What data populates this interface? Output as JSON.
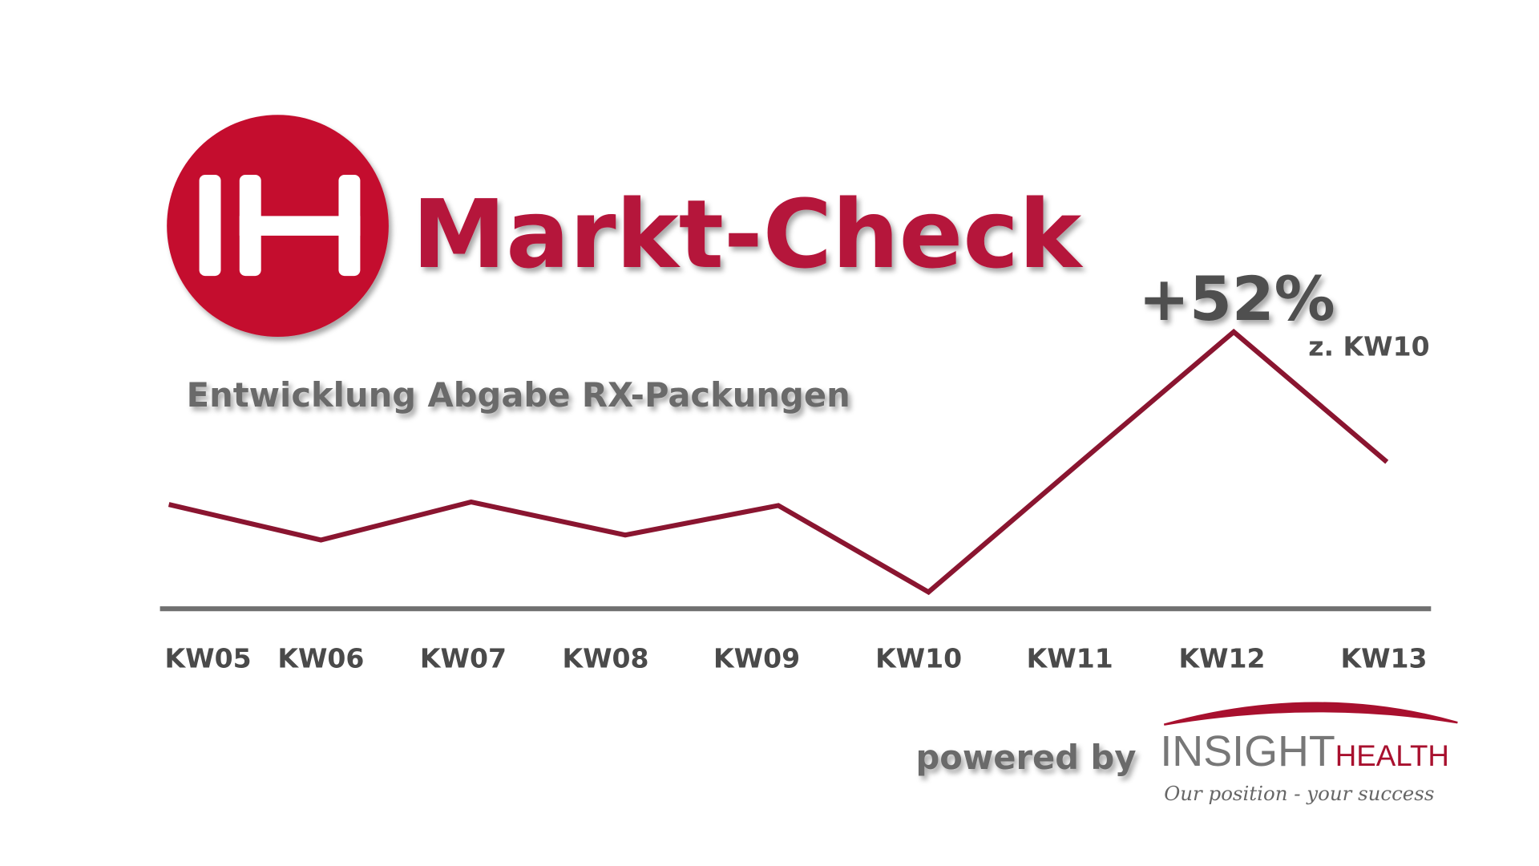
{
  "title": "Markt-Check",
  "logo_letters": "IH",
  "subtitle": "Entwicklung Abgabe RX-Packungen",
  "colors": {
    "brand_red": "#b5123a",
    "line": "#8a1530",
    "axis": "#707070",
    "text_gray": "#4f4f4f"
  },
  "annotation": {
    "value": "+52%",
    "reference": "z. KW10",
    "point": "KW12"
  },
  "footer": {
    "powered_by": "powered by",
    "brand_main": "INSIGHT",
    "brand_accent": "HEALTH",
    "tagline": "Our position - your success"
  },
  "chart_data": {
    "type": "line",
    "title": "Markt-Check",
    "subtitle": "Entwicklung Abgabe RX-Packungen",
    "categories": [
      "KW05",
      "KW06",
      "KW07",
      "KW08",
      "KW09",
      "KW10",
      "KW11",
      "KW12",
      "KW13"
    ],
    "values": [
      117.5,
      110.4,
      118,
      111.4,
      117.3,
      100,
      126,
      152,
      126
    ],
    "y_axis_shown": false,
    "grid": false,
    "legend": "none",
    "annotations": [
      {
        "x": "KW12",
        "text": "+52%",
        "subtext": "z. KW10"
      }
    ]
  }
}
